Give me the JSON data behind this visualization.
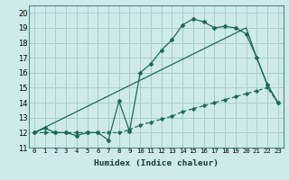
{
  "xlabel": "Humidex (Indice chaleur)",
  "bg_color": "#ceeaea",
  "grid_color": "#aacccc",
  "line_color": "#1a6b5a",
  "xlim": [
    -0.5,
    23.5
  ],
  "ylim": [
    11,
    20.5
  ],
  "yticks": [
    11,
    12,
    13,
    14,
    15,
    16,
    17,
    18,
    19,
    20
  ],
  "xticks": [
    0,
    1,
    2,
    3,
    4,
    5,
    6,
    7,
    8,
    9,
    10,
    11,
    12,
    13,
    14,
    15,
    16,
    17,
    18,
    19,
    20,
    21,
    22,
    23
  ],
  "line1_x": [
    0,
    1,
    2,
    3,
    4,
    5,
    6,
    7,
    8,
    9,
    10,
    11,
    12,
    13,
    14,
    15,
    16,
    17,
    18,
    19,
    20,
    21,
    22,
    23
  ],
  "line1_y": [
    12.0,
    12.3,
    12.0,
    12.0,
    11.8,
    12.0,
    12.0,
    11.5,
    14.1,
    12.1,
    16.0,
    16.6,
    17.5,
    18.2,
    19.2,
    19.6,
    19.4,
    19.0,
    19.1,
    19.0,
    18.6,
    17.0,
    15.2,
    14.0
  ],
  "line2_x": [
    0,
    20,
    21,
    22,
    23
  ],
  "line2_y": [
    12.0,
    19.0,
    17.0,
    15.2,
    14.0
  ],
  "line3_x": [
    0,
    1,
    2,
    3,
    4,
    5,
    6,
    7,
    8,
    9,
    10,
    11,
    12,
    13,
    14,
    15,
    16,
    17,
    18,
    19,
    20,
    21,
    22,
    23
  ],
  "line3_y": [
    12.0,
    12.0,
    12.0,
    12.0,
    12.0,
    12.0,
    12.0,
    12.0,
    12.0,
    12.2,
    12.5,
    12.7,
    12.9,
    13.1,
    13.4,
    13.6,
    13.8,
    14.0,
    14.2,
    14.4,
    14.6,
    14.8,
    15.0,
    14.0
  ]
}
